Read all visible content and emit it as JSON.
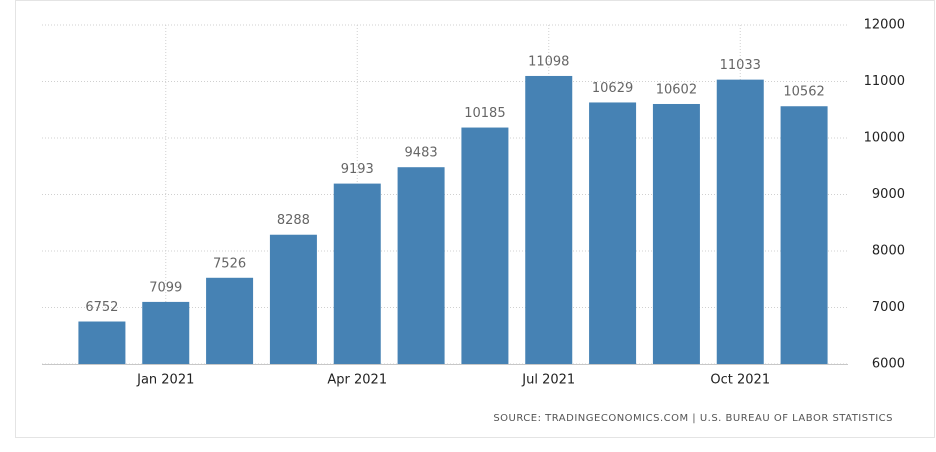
{
  "chart_data": {
    "type": "bar",
    "categories": [
      null,
      "Jan 2021",
      null,
      null,
      "Apr 2021",
      null,
      null,
      "Jul 2021",
      null,
      null,
      "Oct 2021",
      null
    ],
    "values": [
      6752,
      7099,
      7526,
      8288,
      9193,
      9483,
      10185,
      11098,
      10629,
      10602,
      11033,
      10562
    ],
    "color": "#4682b4",
    "ylim": [
      6000,
      12000
    ],
    "yticks": [
      6000,
      7000,
      8000,
      9000,
      10000,
      11000,
      12000
    ],
    "grid": true,
    "source": "SOURCE: TRADINGECONOMICS.COM | U.S. BUREAU OF LABOR STATISTICS"
  }
}
